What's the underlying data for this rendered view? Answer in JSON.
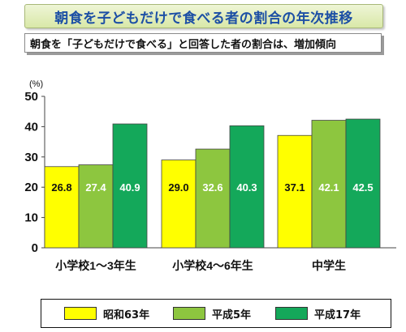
{
  "title": "朝食を子どもだけで食べる者の割合の年次推移",
  "subtitle": "朝食を「子どもだけで食べる」と回答した者の割合は、増加傾向",
  "colors": {
    "series1": "#ffff00",
    "series2": "#8dc63f",
    "series3": "#14a85a",
    "title_text": "#1c4fa5"
  },
  "chart_data": {
    "type": "bar",
    "categories": [
      "小学校1～3年生",
      "小学校4～6年生",
      "中学生"
    ],
    "series": [
      {
        "name": "昭和63年",
        "values": [
          26.8,
          29.0,
          37.1
        ],
        "labels": [
          "26.8",
          "29.0",
          "37.1"
        ]
      },
      {
        "name": "平成5年",
        "values": [
          27.4,
          32.6,
          42.1
        ],
        "labels": [
          "27.4",
          "32.6",
          "42.1"
        ]
      },
      {
        "name": "平成17年",
        "values": [
          40.9,
          40.3,
          42.5
        ],
        "labels": [
          "40.9",
          "40.3",
          "42.5"
        ]
      }
    ],
    "ylabel": "(%)",
    "ylim": [
      0,
      50
    ],
    "yticks": [
      "0",
      "10",
      "20",
      "30",
      "40",
      "50"
    ],
    "grid": false,
    "legend_position": "bottom"
  }
}
